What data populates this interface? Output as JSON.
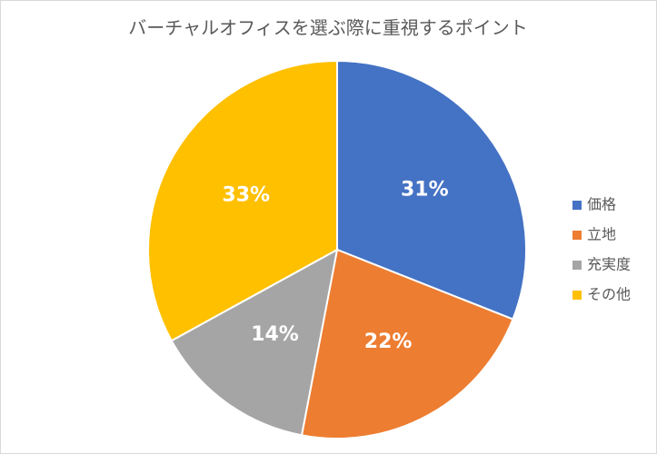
{
  "chart_data": {
    "type": "pie",
    "title": "バーチャルオフィスを選ぶ際に重視するポイント",
    "categories": [
      "価格",
      "立地",
      "充実度",
      "その他"
    ],
    "values": [
      31,
      22,
      14,
      33
    ],
    "value_labels": [
      "31%",
      "22%",
      "14%",
      "33%"
    ],
    "colors": [
      "#4472c4",
      "#ed7d31",
      "#a5a5a5",
      "#ffc000"
    ],
    "legend": "right"
  }
}
